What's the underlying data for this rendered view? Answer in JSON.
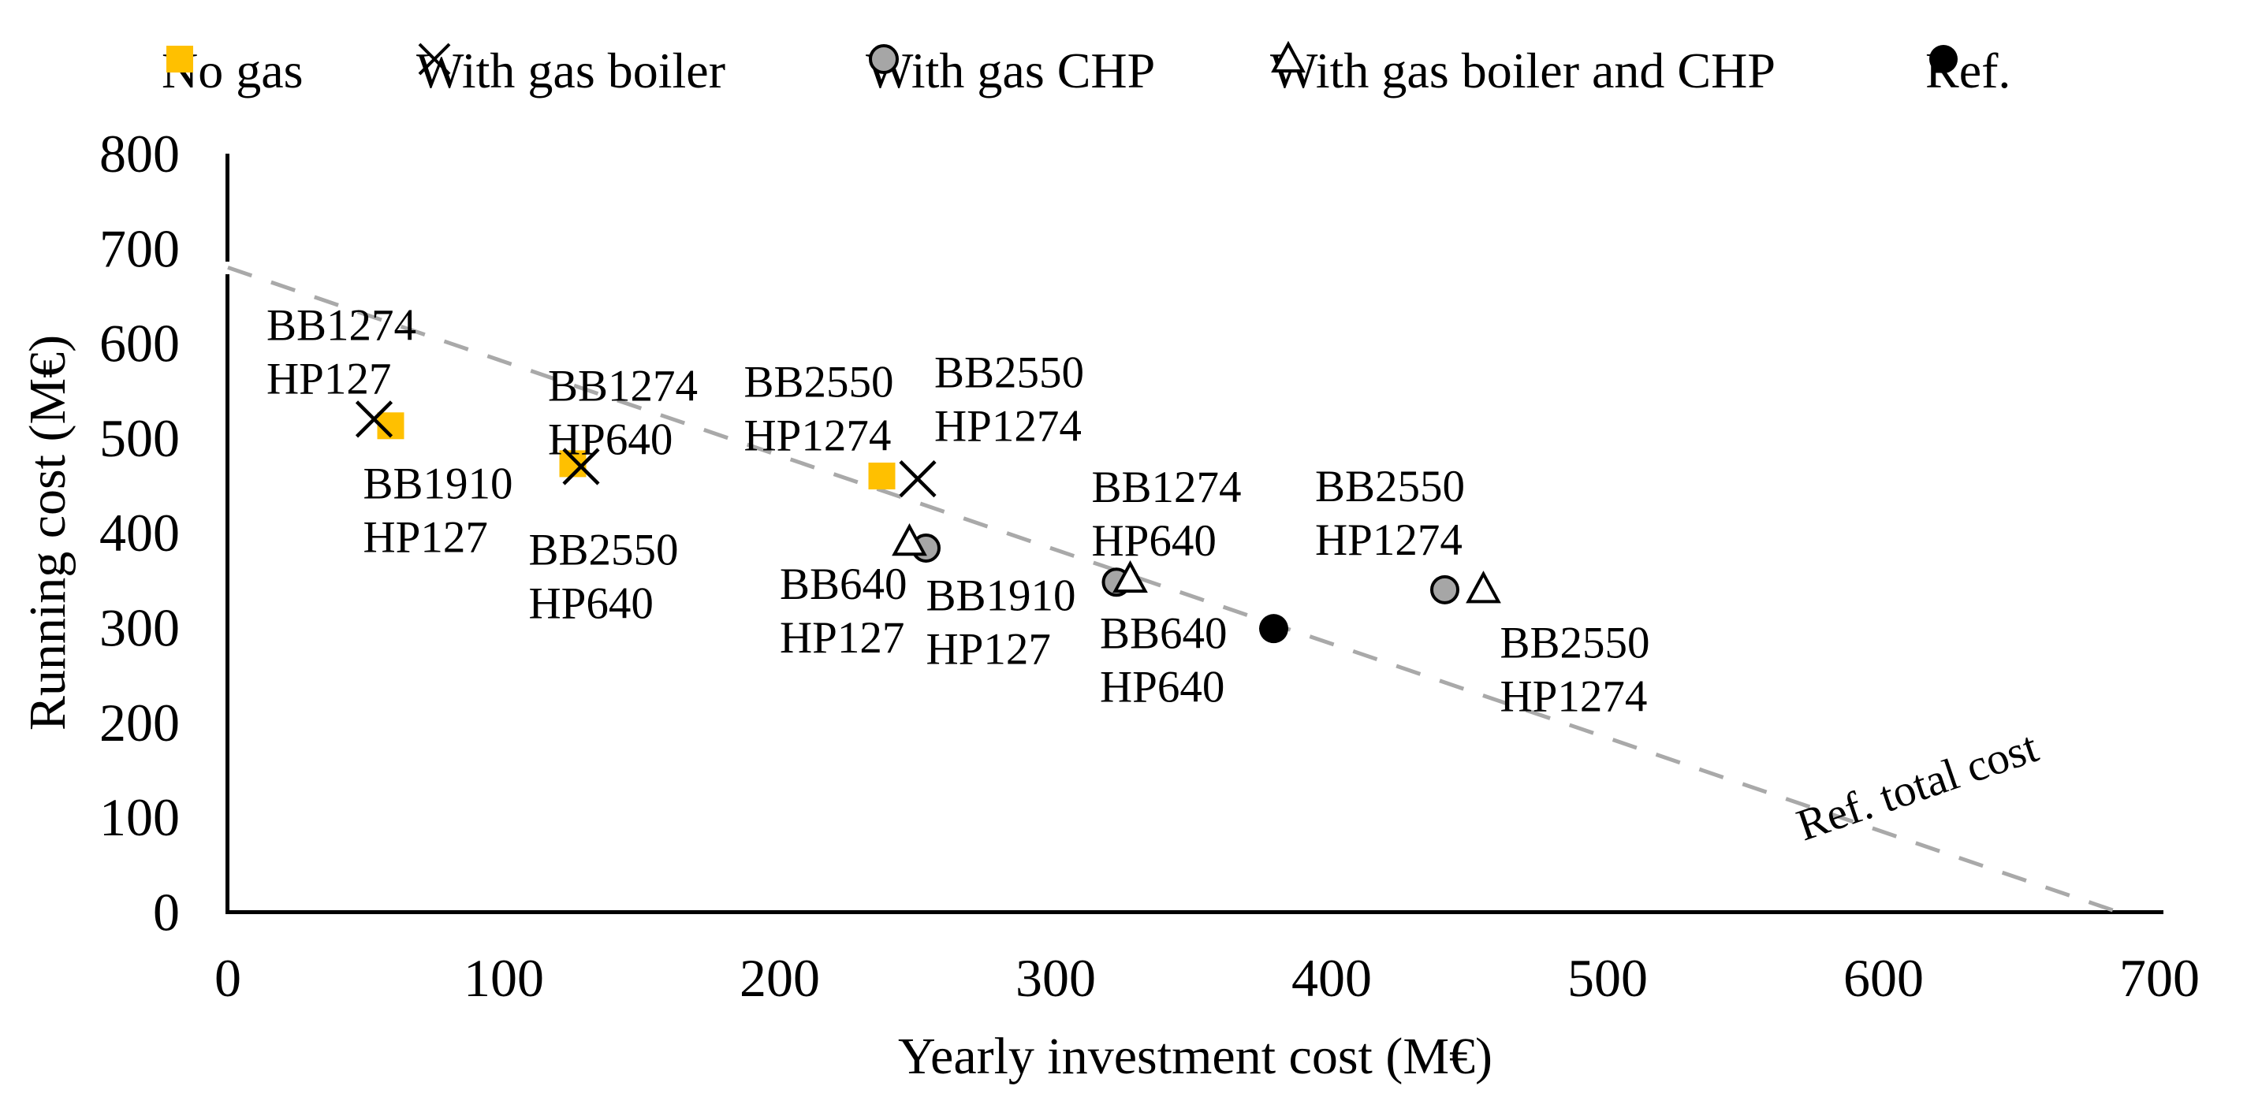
{
  "colors": {
    "no_gas_yellow": "#FFC000",
    "chp_gray": "#A6A6A6",
    "triangle_white": "#FFFFFF",
    "marker_outline": "#000000",
    "ref_black": "#000000",
    "dash_line_gray": "#A9A9A9",
    "axis_black": "#000000",
    "background": "#FFFFFF"
  },
  "chart_data": {
    "type": "scatter",
    "title": "",
    "xlabel": "Yearly investment cost (M€)",
    "ylabel": "Running cost (M€)",
    "xlim": [
      0,
      700
    ],
    "ylim": [
      0,
      800
    ],
    "x_ticks": [
      0,
      100,
      200,
      300,
      400,
      500,
      600,
      700
    ],
    "y_ticks": [
      0,
      100,
      200,
      300,
      400,
      500,
      600,
      700,
      800
    ],
    "grid": false,
    "legend_position": "top",
    "series": [
      {
        "name": "No gas",
        "marker": "square",
        "color": "#FFC000",
        "points": [
          {
            "x": 59,
            "y": 513
          },
          {
            "x": 125,
            "y": 473
          },
          {
            "x": 237,
            "y": 460
          }
        ]
      },
      {
        "name": "With gas boiler",
        "marker": "x",
        "color": "#000000",
        "points": [
          {
            "x": 53,
            "y": 520
          },
          {
            "x": 128,
            "y": 470
          },
          {
            "x": 250,
            "y": 457
          }
        ]
      },
      {
        "name": "With gas CHP",
        "marker": "circle",
        "color": "#A6A6A6",
        "points": [
          {
            "x": 253,
            "y": 384
          },
          {
            "x": 322,
            "y": 348
          },
          {
            "x": 441,
            "y": 340
          }
        ]
      },
      {
        "name": "With gas boiler and CHP",
        "marker": "triangle",
        "color": "#FFFFFF",
        "points": [
          {
            "x": 247,
            "y": 390
          },
          {
            "x": 327,
            "y": 351
          },
          {
            "x": 455,
            "y": 340
          }
        ]
      },
      {
        "name": "Ref.",
        "marker": "dot",
        "color": "#000000",
        "points": [
          {
            "x": 379,
            "y": 299
          }
        ]
      }
    ],
    "ref_line": {
      "x1": 0,
      "y1": 680,
      "x2": 685,
      "y2": 0,
      "style": "dashed",
      "label": "Ref. total cost",
      "label_x": 614,
      "label_y": 118,
      "label_rotation_deg": -19
    },
    "annotations": [
      {
        "lines": [
          "BB1274",
          "HP127"
        ],
        "x": 14,
        "y": 640
      },
      {
        "lines": [
          "BB1910",
          "HP127"
        ],
        "x": 49,
        "y": 473
      },
      {
        "lines": [
          "BB1274",
          "HP640"
        ],
        "x": 116,
        "y": 576
      },
      {
        "lines": [
          "BB2550",
          "HP640"
        ],
        "x": 109,
        "y": 403
      },
      {
        "lines": [
          "BB2550",
          "HP1274"
        ],
        "x": 187,
        "y": 580
      },
      {
        "lines": [
          "BB2550",
          "HP1274"
        ],
        "x": 256,
        "y": 590
      },
      {
        "lines": [
          "BB640",
          "HP127"
        ],
        "x": 200,
        "y": 367
      },
      {
        "lines": [
          "BB1910",
          "HP127"
        ],
        "x": 253,
        "y": 355
      },
      {
        "lines": [
          "BB1274",
          "HP640"
        ],
        "x": 313,
        "y": 469
      },
      {
        "lines": [
          "BB640",
          "HP640"
        ],
        "x": 316,
        "y": 315
      },
      {
        "lines": [
          "BB2550",
          "HP1274"
        ],
        "x": 394,
        "y": 470
      },
      {
        "lines": [
          "BB2550",
          "HP1274"
        ],
        "x": 461,
        "y": 305
      }
    ]
  }
}
